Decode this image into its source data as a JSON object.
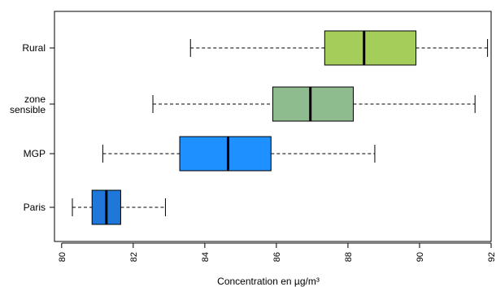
{
  "chart_data": {
    "type": "boxplot",
    "orientation": "horizontal",
    "title": "",
    "xlabel": "Concentration en µg/m³",
    "ylabel": "",
    "xlim": [
      79.8,
      92.0
    ],
    "x_ticks": [
      80,
      82,
      84,
      86,
      88,
      90,
      92
    ],
    "x_tick_labels": [
      "80",
      "82",
      "84",
      "86",
      "88",
      "90",
      "92"
    ],
    "categories": [
      [
        "Paris"
      ],
      [
        "MGP"
      ],
      [
        "zone",
        "sensible"
      ],
      [
        "Rural"
      ]
    ],
    "series": [
      {
        "category": "Paris",
        "whisker_low": 80.3,
        "q1": 80.85,
        "median": 81.25,
        "q3": 81.65,
        "whisker_high": 82.9,
        "color": "#1f78d9"
      },
      {
        "category": "MGP",
        "whisker_low": 81.15,
        "q1": 83.3,
        "median": 84.65,
        "q3": 85.85,
        "whisker_high": 88.75,
        "color": "#1e90ff"
      },
      {
        "category": "zone sensible",
        "whisker_low": 82.55,
        "q1": 85.9,
        "median": 86.95,
        "q3": 88.15,
        "whisker_high": 91.55,
        "color": "#8fbc8f"
      },
      {
        "category": "Rural",
        "whisker_low": 83.6,
        "q1": 87.35,
        "median": 88.45,
        "q3": 89.9,
        "whisker_high": 91.9,
        "color": "#a4cd5a"
      }
    ],
    "grid": false,
    "legend": "none"
  }
}
